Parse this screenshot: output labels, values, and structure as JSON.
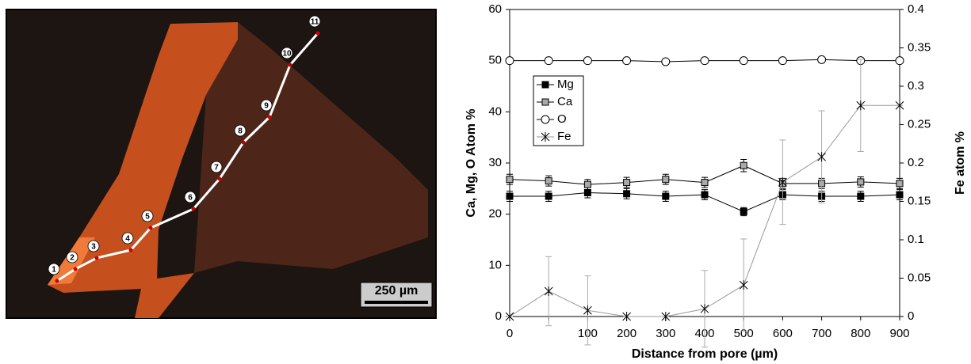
{
  "micrograph": {
    "points": [
      "1",
      "2",
      "3",
      "4",
      "5",
      "6",
      "7",
      "8",
      "9",
      "10",
      "11"
    ],
    "scale_label": "250 µm"
  },
  "chart_data": {
    "type": "line",
    "xlabel": "Distance from pore (µm)",
    "ylabel": "Ca, Mg, O  Atom %",
    "y2label": "Fe atom %",
    "categories": [
      "0",
      null,
      "100",
      "200",
      "300",
      "400",
      "500",
      "600",
      "700",
      "800",
      "900"
    ],
    "ylim": [
      0,
      60
    ],
    "yticks": [
      0,
      10,
      20,
      30,
      40,
      50,
      60
    ],
    "y2lim": [
      0,
      0.4
    ],
    "y2ticks": [
      0,
      0.05,
      0.1,
      0.15,
      0.2,
      0.25,
      0.3,
      0.35,
      0.4
    ],
    "legend": "upper left",
    "series": [
      {
        "name": "Mg",
        "color": "#000000",
        "marker": "square",
        "fill": "#000000",
        "values": [
          23.5,
          23.5,
          24.2,
          24,
          23.5,
          23.8,
          20.5,
          23.8,
          23.5,
          23.5,
          23.8
        ],
        "errors": [
          1,
          1,
          1,
          1,
          1,
          1,
          0.8,
          1,
          1,
          1,
          1
        ]
      },
      {
        "name": "Ca",
        "color": "#000000",
        "marker": "square",
        "fill": "#aaaaaa",
        "values": [
          26.8,
          26.5,
          25.8,
          26.2,
          26.8,
          26.2,
          29.5,
          26,
          26,
          26.3,
          26
        ],
        "errors": [
          1,
          1,
          1,
          1,
          1,
          1,
          1.2,
          1,
          1,
          1,
          1
        ]
      },
      {
        "name": "O",
        "color": "#000000",
        "marker": "circle",
        "fill": "#ffffff",
        "values": [
          50,
          50,
          50,
          50,
          49.8,
          50,
          50,
          50,
          50.2,
          50,
          50
        ]
      },
      {
        "name": "Fe",
        "color": "#999999",
        "marker": "star",
        "axis": "y2",
        "values": [
          0,
          0.033,
          0.008,
          0,
          0,
          0.01,
          0.041,
          0.175,
          0.208,
          0.275,
          0.275
        ],
        "errors": [
          0,
          0.045,
          0.045,
          0,
          0,
          0.05,
          0.06,
          0.055,
          0.06,
          0.06,
          0
        ]
      }
    ]
  }
}
